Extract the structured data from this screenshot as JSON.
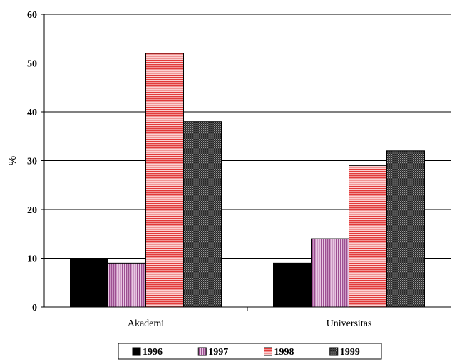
{
  "chart_data": {
    "type": "bar",
    "title": "",
    "xlabel": "",
    "ylabel": "%",
    "ylim": [
      0,
      60
    ],
    "yticks": [
      0,
      10,
      20,
      30,
      40,
      50,
      60
    ],
    "grid": true,
    "legend_position": "bottom",
    "categories": [
      "Akademi",
      "Universitas"
    ],
    "series": [
      {
        "name": "1996",
        "values": [
          10,
          9
        ],
        "color": "#000000",
        "pattern": "solid"
      },
      {
        "name": "1997",
        "values": [
          9,
          14
        ],
        "color": "#d9a0cf",
        "pattern": "vertical-stripes"
      },
      {
        "name": "1998",
        "values": [
          52,
          29
        ],
        "color": "#f28b8b",
        "pattern": "horizontal-stripes"
      },
      {
        "name": "1999",
        "values": [
          38,
          32
        ],
        "color": "#444444",
        "pattern": "checker"
      }
    ]
  }
}
